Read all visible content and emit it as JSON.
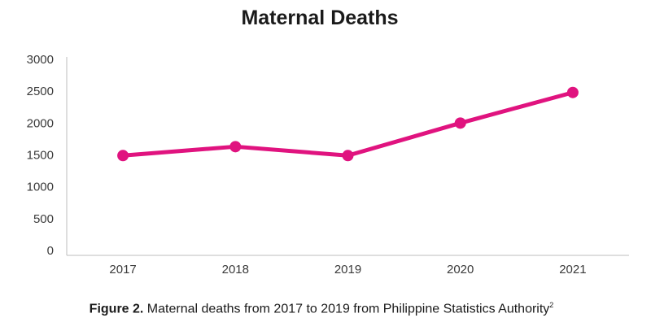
{
  "chart_data": {
    "type": "line",
    "title": "Maternal Deaths",
    "categories": [
      "2017",
      "2018",
      "2019",
      "2020",
      "2021"
    ],
    "series": [
      {
        "values": [
          1490,
          1630,
          1490,
          2000,
          2480
        ]
      }
    ],
    "ylim": [
      0,
      3000
    ],
    "yticks": [
      0,
      500,
      1000,
      1500,
      2000,
      2500,
      3000
    ],
    "xlabel": "",
    "ylabel": "",
    "grid": false,
    "legend": "none",
    "color": "#e0137f"
  },
  "caption": {
    "label": "Figure 2.",
    "text": " Maternal deaths from 2017 to 2019 from Philippine Statistics Authority",
    "superscript": "2"
  }
}
